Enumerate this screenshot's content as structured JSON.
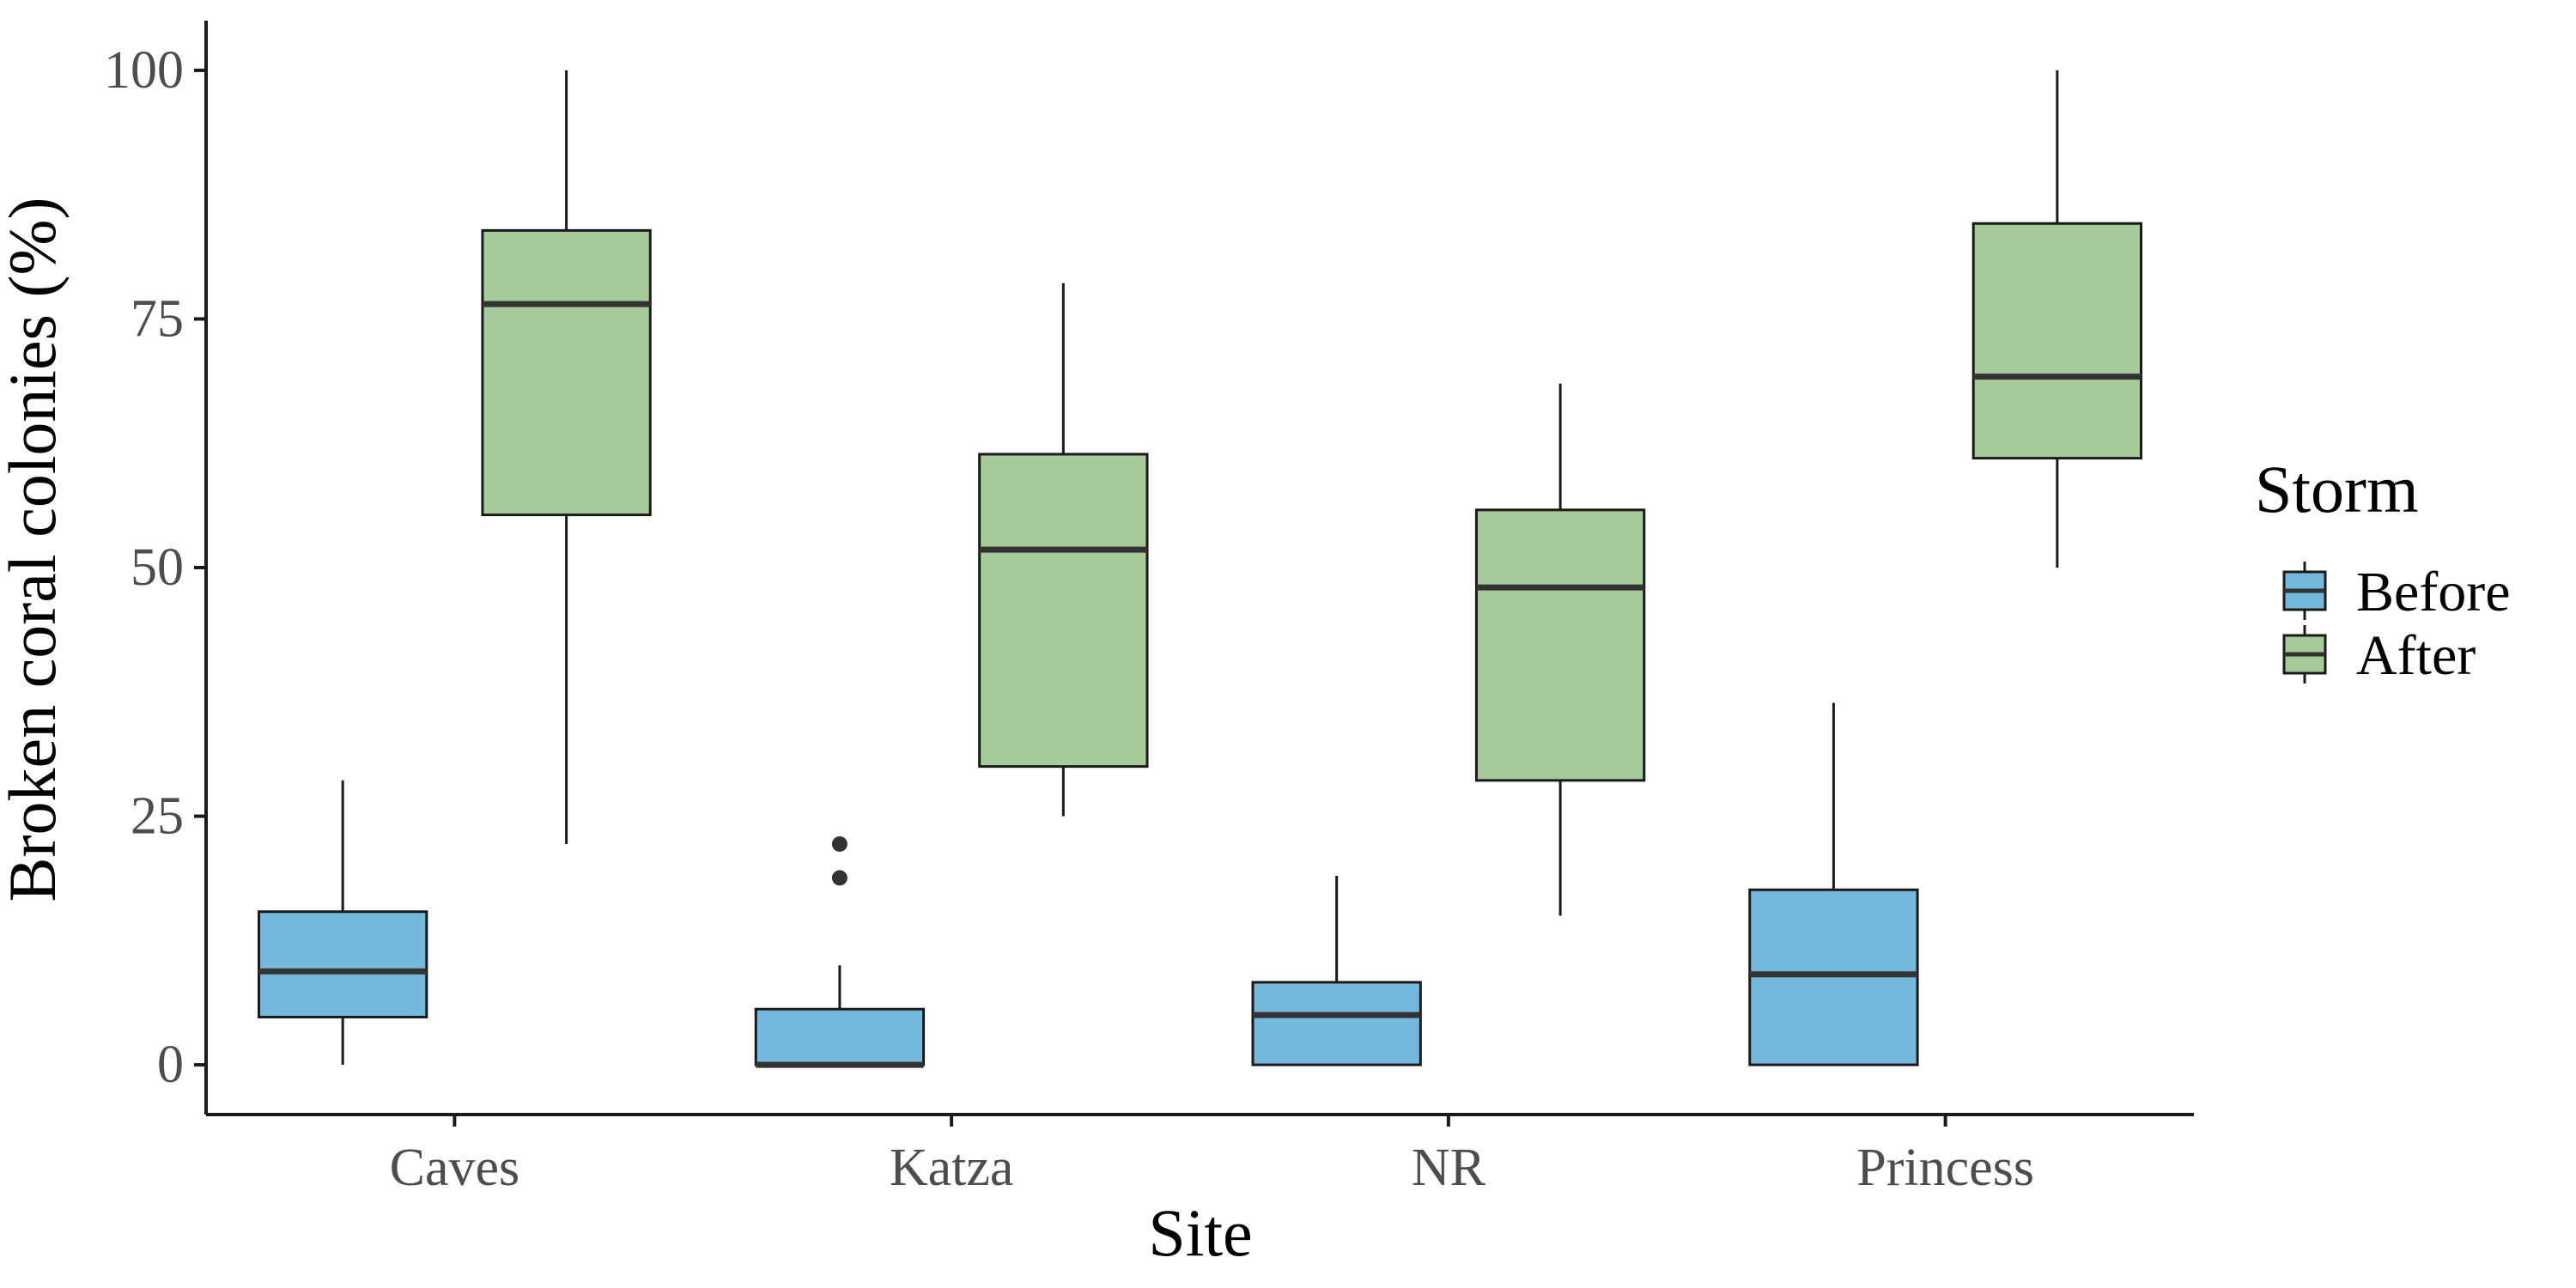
{
  "chart_data": {
    "type": "boxplot",
    "title": "",
    "xlabel": "Site",
    "ylabel": "Broken coral colonies (%)",
    "ylim": [
      -5,
      105
    ],
    "y_ticks": [
      0,
      25,
      50,
      75,
      100
    ],
    "y_tick_labels": [
      "0",
      "25",
      "50",
      "75",
      "100"
    ],
    "categories": [
      "Caves",
      "Katza",
      "NR",
      "Princess"
    ],
    "grid": false,
    "legend": {
      "title": "Storm",
      "placement": "right",
      "entries": [
        "Before",
        "After"
      ]
    },
    "series": [
      {
        "name": "Before",
        "color": "#74b9dc",
        "boxes": [
          {
            "category": "Caves",
            "whisker_low": 0,
            "q1": 4.8,
            "median": 9.4,
            "q3": 15.4,
            "whisker_high": 28.6,
            "outliers": []
          },
          {
            "category": "Katza",
            "whisker_low": 0,
            "q1": 0,
            "median": 0,
            "q3": 5.6,
            "whisker_high": 10,
            "outliers": [
              18.8,
              22.2
            ]
          },
          {
            "category": "NR",
            "whisker_low": 0,
            "q1": 0,
            "median": 5,
            "q3": 8.3,
            "whisker_high": 19,
            "outliers": []
          },
          {
            "category": "Princess",
            "whisker_low": 0,
            "q1": 0,
            "median": 9.1,
            "q3": 17.6,
            "whisker_high": 36.4,
            "outliers": []
          }
        ]
      },
      {
        "name": "After",
        "color": "#a6ca99",
        "boxes": [
          {
            "category": "Caves",
            "whisker_low": 22.2,
            "q1": 55.3,
            "median": 76.5,
            "q3": 83.9,
            "whisker_high": 100,
            "outliers": []
          },
          {
            "category": "Katza",
            "whisker_low": 25,
            "q1": 30,
            "median": 51.8,
            "q3": 61.4,
            "whisker_high": 78.6,
            "outliers": []
          },
          {
            "category": "NR",
            "whisker_low": 15,
            "q1": 28.6,
            "median": 48,
            "q3": 55.8,
            "whisker_high": 68.5,
            "outliers": []
          },
          {
            "category": "Princess",
            "whisker_low": 50,
            "q1": 61,
            "median": 69.2,
            "q3": 84.6,
            "whisker_high": 100,
            "outliers": []
          }
        ]
      }
    ],
    "colors": {
      "box_outline": "#1a1a1a",
      "median_line": "#333333",
      "axis_line": "#1a1a1a",
      "outlier": "#333333"
    }
  }
}
